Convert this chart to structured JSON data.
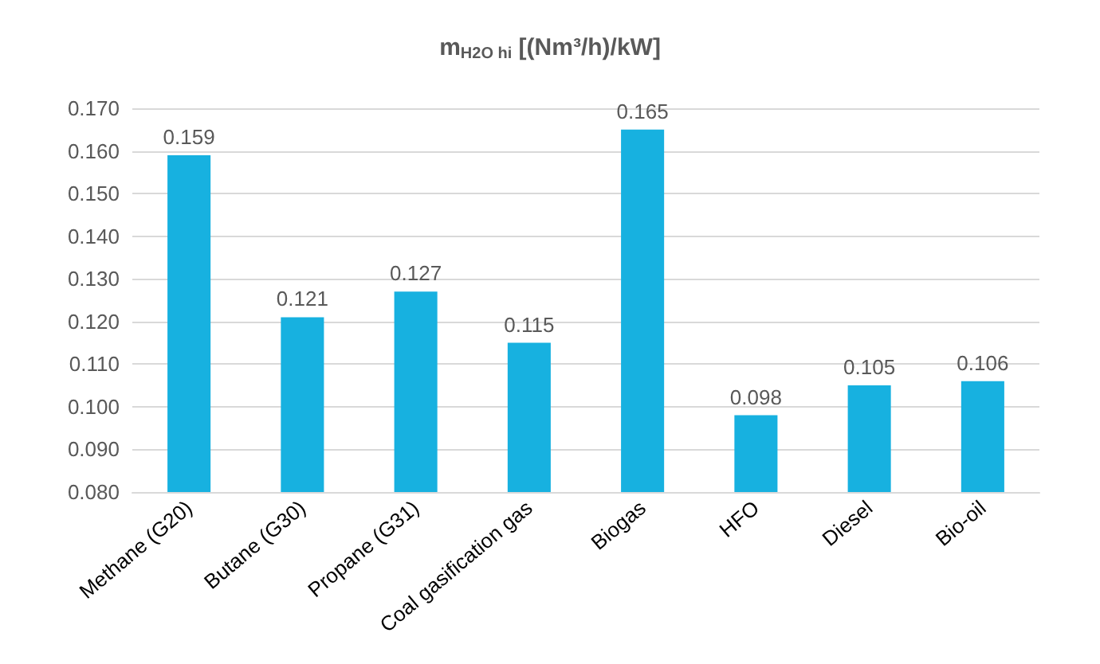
{
  "chart_data": {
    "type": "bar",
    "title": "m$_{H2O hi}$ [(Nm³/h)/kW]",
    "categories": [
      "Methane (G20)",
      "Butane (G30)",
      "Propane (G31)",
      "Coal gasification gas",
      "Biogas",
      "HFO",
      "Diesel",
      "Bio-oil"
    ],
    "values": [
      0.159,
      0.121,
      0.127,
      0.115,
      0.165,
      0.098,
      0.105,
      0.106
    ],
    "color": "#17b1e0",
    "ylim": [
      0.08,
      0.17
    ],
    "yticks": [
      {
        "value": 0.08,
        "label": "0.080"
      },
      {
        "value": 0.09,
        "label": "0.090"
      },
      {
        "value": 0.1,
        "label": "0.100"
      },
      {
        "value": 0.11,
        "label": "0.110"
      },
      {
        "value": 0.12,
        "label": "0.120"
      },
      {
        "value": 0.13,
        "label": "0.130"
      },
      {
        "value": 0.14,
        "label": "0.140"
      },
      {
        "value": 0.15,
        "label": "0.150"
      },
      {
        "value": 0.16,
        "label": "0.160"
      },
      {
        "value": 0.17,
        "label": "0.170"
      }
    ],
    "grid": "y",
    "data_labels": true
  }
}
